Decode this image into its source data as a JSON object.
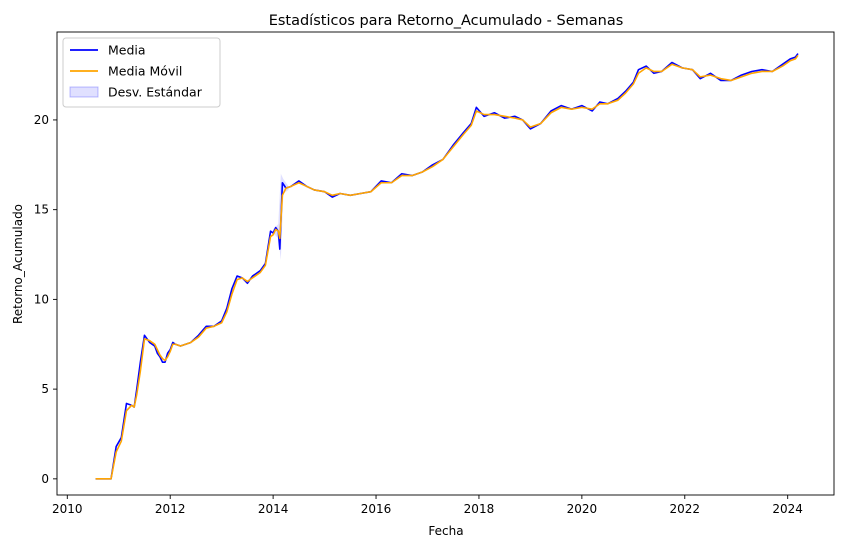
{
  "chart_data": {
    "type": "line",
    "title": "Estadísticos para Retorno_Acumulado - Semanas",
    "xlabel": "Fecha",
    "ylabel": "Retorno_Acumulado",
    "xlim": [
      2009.8,
      2024.9
    ],
    "ylim": [
      -0.9,
      24.9
    ],
    "xticks": [
      2010,
      2012,
      2014,
      2016,
      2018,
      2020,
      2022,
      2024
    ],
    "xtick_labels": [
      "2010",
      "2012",
      "2014",
      "2016",
      "2018",
      "2020",
      "2022",
      "2024"
    ],
    "yticks": [
      0,
      5,
      10,
      15,
      20
    ],
    "ytick_labels": [
      "0",
      "5",
      "10",
      "15",
      "20"
    ],
    "grid": false,
    "legend_position": "top-left",
    "legend": [
      {
        "label": "Media",
        "kind": "line",
        "color": "#0000ff"
      },
      {
        "label": "Media Móvil",
        "kind": "line",
        "color": "#ffa500"
      },
      {
        "label": "Desv. Estándar",
        "kind": "band",
        "color": "#0000ff"
      }
    ],
    "x": [
      2010.55,
      2010.75,
      2010.85,
      2010.95,
      2011.05,
      2011.15,
      2011.25,
      2011.3,
      2011.35,
      2011.42,
      2011.5,
      2011.6,
      2011.7,
      2011.75,
      2011.8,
      2011.85,
      2011.9,
      2011.95,
      2012.0,
      2012.05,
      2012.1,
      2012.2,
      2012.3,
      2012.4,
      2012.55,
      2012.7,
      2012.85,
      2013.0,
      2013.1,
      2013.2,
      2013.3,
      2013.4,
      2013.5,
      2013.6,
      2013.75,
      2013.85,
      2013.95,
      2014.0,
      2014.05,
      2014.1,
      2014.13,
      2014.18,
      2014.25,
      2014.35,
      2014.5,
      2014.65,
      2014.8,
      2015.0,
      2015.15,
      2015.3,
      2015.5,
      2015.7,
      2015.9,
      2016.1,
      2016.3,
      2016.5,
      2016.7,
      2016.9,
      2017.1,
      2017.3,
      2017.5,
      2017.7,
      2017.85,
      2017.95,
      2018.1,
      2018.3,
      2018.5,
      2018.7,
      2018.85,
      2019.0,
      2019.2,
      2019.4,
      2019.6,
      2019.8,
      2020.0,
      2020.2,
      2020.35,
      2020.5,
      2020.7,
      2020.85,
      2021.0,
      2021.1,
      2021.25,
      2021.4,
      2021.55,
      2021.75,
      2021.95,
      2022.15,
      2022.3,
      2022.5,
      2022.7,
      2022.9,
      2023.1,
      2023.3,
      2023.5,
      2023.7,
      2023.9,
      2024.05,
      2024.15,
      2024.2
    ],
    "series": [
      {
        "name": "Media",
        "color": "#0000ff",
        "values": [
          0.0,
          0.0,
          0.0,
          1.8,
          2.3,
          4.2,
          4.1,
          4.0,
          5.0,
          6.5,
          8.0,
          7.6,
          7.4,
          7.0,
          6.8,
          6.5,
          6.5,
          7.0,
          7.2,
          7.6,
          7.5,
          7.4,
          7.5,
          7.6,
          8.0,
          8.5,
          8.5,
          8.8,
          9.5,
          10.6,
          11.3,
          11.2,
          10.9,
          11.3,
          11.6,
          12.0,
          13.8,
          13.7,
          14.0,
          13.8,
          12.8,
          16.5,
          16.2,
          16.3,
          16.6,
          16.3,
          16.1,
          16.0,
          15.7,
          15.9,
          15.8,
          15.9,
          16.0,
          16.6,
          16.5,
          17.0,
          16.9,
          17.1,
          17.5,
          17.8,
          18.6,
          19.3,
          19.8,
          20.7,
          20.2,
          20.4,
          20.1,
          20.2,
          20.0,
          19.5,
          19.8,
          20.5,
          20.8,
          20.6,
          20.8,
          20.5,
          21.0,
          20.9,
          21.2,
          21.6,
          22.1,
          22.8,
          23.0,
          22.6,
          22.7,
          23.2,
          22.9,
          22.8,
          22.3,
          22.6,
          22.2,
          22.2,
          22.5,
          22.7,
          22.8,
          22.7,
          23.1,
          23.4,
          23.5,
          23.7
        ]
      },
      {
        "name": "Media Móvil",
        "color": "#ffa500",
        "values": [
          0.0,
          0.0,
          0.0,
          1.5,
          2.1,
          3.8,
          4.1,
          4.0,
          4.7,
          6.0,
          7.8,
          7.7,
          7.5,
          7.2,
          6.9,
          6.7,
          6.6,
          6.8,
          7.1,
          7.5,
          7.5,
          7.4,
          7.5,
          7.6,
          7.9,
          8.4,
          8.5,
          8.7,
          9.3,
          10.3,
          11.1,
          11.2,
          11.0,
          11.2,
          11.5,
          11.9,
          13.5,
          13.6,
          13.9,
          13.8,
          13.4,
          15.8,
          16.2,
          16.3,
          16.5,
          16.3,
          16.1,
          16.0,
          15.8,
          15.9,
          15.8,
          15.9,
          16.0,
          16.5,
          16.5,
          16.9,
          16.9,
          17.1,
          17.4,
          17.8,
          18.5,
          19.2,
          19.7,
          20.5,
          20.3,
          20.3,
          20.2,
          20.1,
          20.0,
          19.6,
          19.8,
          20.4,
          20.7,
          20.6,
          20.7,
          20.6,
          20.9,
          20.9,
          21.1,
          21.5,
          22.0,
          22.6,
          22.9,
          22.7,
          22.7,
          23.1,
          22.9,
          22.8,
          22.4,
          22.5,
          22.3,
          22.2,
          22.4,
          22.6,
          22.7,
          22.7,
          23.0,
          23.3,
          23.4,
          23.6
        ]
      }
    ],
    "std_band": {
      "name": "Desv. Estándar",
      "color": "#0000ff",
      "opacity": 0.12,
      "x": [
        2014.0,
        2014.1,
        2014.15,
        2014.2,
        2014.3
      ],
      "upper": [
        13.9,
        14.2,
        17.0,
        16.7,
        16.3
      ],
      "lower": [
        13.7,
        13.4,
        12.2,
        15.9,
        16.1
      ]
    }
  }
}
